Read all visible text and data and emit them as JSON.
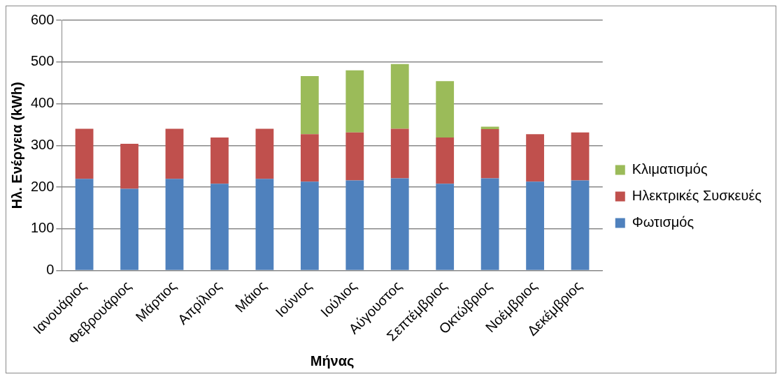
{
  "chart_data": {
    "type": "bar",
    "stacked": true,
    "xlabel": "Μήνας",
    "ylabel": "Ηλ. Ενέργεια (kWh)",
    "categories": [
      "Ιανουάριος",
      "Φεβρουάριος",
      "Μάρτιος",
      "Απρίλιος",
      "Μάιος",
      "Ιούνιος",
      "Ιούλιος",
      "Αύγουστος",
      "Σεπτέμβριος",
      "Οκτώβριος",
      "Νοέμβριος",
      "Δεκέμβριος"
    ],
    "series": [
      {
        "name": "Φωτισμός",
        "color": "#4f81bd",
        "values": [
          220,
          196,
          220,
          208,
          220,
          213,
          216,
          221,
          208,
          221,
          213,
          216
        ]
      },
      {
        "name": "Ηλεκτρικές Συσκευές",
        "color": "#c0504d",
        "values": [
          120,
          108,
          120,
          111,
          120,
          114,
          115,
          119,
          111,
          118,
          114,
          115
        ]
      },
      {
        "name": "Κλιματισμός",
        "color": "#9bbb59",
        "values": [
          0,
          0,
          0,
          0,
          0,
          139,
          149,
          155,
          135,
          6,
          0,
          0
        ]
      }
    ],
    "ylim": [
      0,
      600
    ],
    "yticks": [
      0,
      100,
      200,
      300,
      400,
      500,
      600
    ],
    "grid": "y",
    "legend": "right"
  }
}
